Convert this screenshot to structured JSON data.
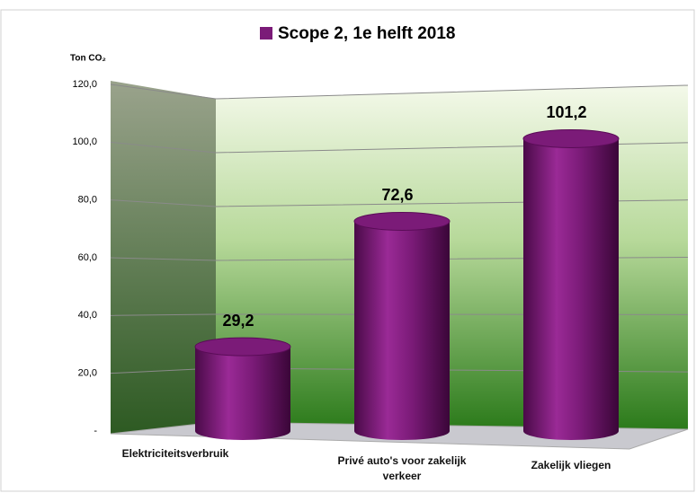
{
  "chart_data": {
    "type": "bar",
    "y_axis_label": "Ton CO₂",
    "categories": [
      "Elektriciteitsverbruik",
      "Privé auto's voor zakelijk verkeer",
      "Zakelijk vliegen"
    ],
    "series": [
      {
        "name": "Scope 2, 1e helft 2018",
        "color": "#7b1b78",
        "values": [
          29.2,
          72.6,
          101.2
        ],
        "value_labels": [
          "29,2",
          "72,6",
          "101,2"
        ]
      }
    ],
    "ylim": [
      0,
      120
    ],
    "yticks": [
      {
        "value": 0,
        "label": "-"
      },
      {
        "value": 20,
        "label": "20,0"
      },
      {
        "value": 40,
        "label": "40,0"
      },
      {
        "value": 60,
        "label": "60,0"
      },
      {
        "value": 80,
        "label": "80,0"
      },
      {
        "value": 100,
        "label": "100,0"
      },
      {
        "value": 120,
        "label": "120,0"
      }
    ],
    "grid": true
  }
}
